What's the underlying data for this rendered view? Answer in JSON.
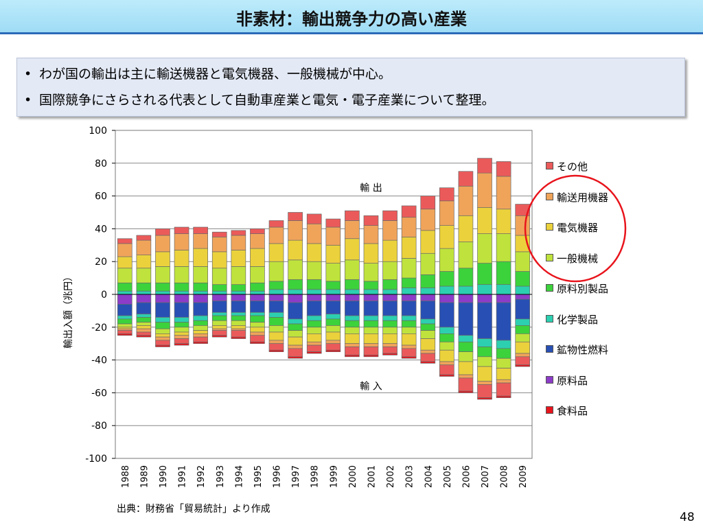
{
  "slide": {
    "title": "非素材：輸出競争力の高い産業",
    "bullets": [
      "わが国の輸出は主に輸送機器と電気機器、一般機械が中心。",
      "国際競争にさらされる代表として自動車産業と電気・電子産業について整理。"
    ],
    "bullet_symbol": "•",
    "source": "出典：財務省「貿易統計」より作成",
    "page_number": "48"
  },
  "chart_data": {
    "type": "bar",
    "stacked": true,
    "ylabel": "輸出入額（兆円）",
    "ylim": [
      -100,
      100
    ],
    "yticks": [
      100,
      80,
      60,
      40,
      20,
      0,
      -20,
      -40,
      -60,
      -80,
      -100
    ],
    "grid": true,
    "legend_position": "right",
    "categories": [
      "1988",
      "1989",
      "1990",
      "1991",
      "1992",
      "1993",
      "1994",
      "1995",
      "1996",
      "1997",
      "1998",
      "1999",
      "2000",
      "2001",
      "2002",
      "2003",
      "2004",
      "2005",
      "2006",
      "2007",
      "2008",
      "2009"
    ],
    "annotations": [
      {
        "text": "輸 出",
        "x": "2001",
        "y": 63
      },
      {
        "text": "輸 入",
        "x": "2001",
        "y": -58
      }
    ],
    "highlight": {
      "shape": "circle",
      "color": "#e8141c",
      "around": "legend: 輸送用機器, 電気機器, 一般機械"
    },
    "export_series": [
      {
        "name": "化学製品",
        "color": "#2cd0b0",
        "values": [
          2,
          2,
          2,
          2,
          2,
          2,
          2,
          2,
          3,
          3,
          3,
          3,
          3,
          3,
          3,
          4,
          4,
          5,
          5,
          6,
          6,
          5
        ]
      },
      {
        "name": "原料別製品",
        "color": "#3cd23c",
        "values": [
          5,
          5,
          5,
          5,
          5,
          4,
          4,
          5,
          5,
          6,
          6,
          5,
          6,
          5,
          6,
          6,
          8,
          9,
          11,
          13,
          14,
          9
        ]
      },
      {
        "name": "一般機械",
        "color": "#bfe33c",
        "values": [
          9,
          9,
          10,
          10,
          10,
          10,
          11,
          10,
          12,
          12,
          11,
          11,
          12,
          11,
          11,
          12,
          13,
          14,
          16,
          18,
          17,
          12
        ]
      },
      {
        "name": "電気機器",
        "color": "#ebd23c",
        "values": [
          7,
          8,
          9,
          10,
          11,
          10,
          10,
          11,
          11,
          12,
          11,
          11,
          13,
          12,
          13,
          13,
          14,
          14,
          16,
          16,
          15,
          10
        ]
      },
      {
        "name": "輸送用機器",
        "color": "#f0a45a",
        "values": [
          8,
          9,
          10,
          10,
          9,
          9,
          9,
          9,
          10,
          12,
          12,
          11,
          11,
          11,
          12,
          12,
          13,
          15,
          18,
          21,
          20,
          12
        ]
      },
      {
        "name": "その他",
        "color": "#eb5a5a",
        "values": [
          3,
          3,
          4,
          4,
          4,
          3,
          3,
          3,
          4,
          5,
          6,
          5,
          6,
          6,
          6,
          7,
          8,
          8,
          9,
          9,
          9,
          7
        ]
      }
    ],
    "import_series": [
      {
        "name": "原料品",
        "color": "#8c3cc8",
        "values": [
          6,
          5,
          5,
          5,
          5,
          4,
          4,
          4,
          4,
          5,
          4,
          4,
          4,
          4,
          4,
          4,
          4,
          5,
          5,
          5,
          5,
          3
        ]
      },
      {
        "name": "鉱物性燃料",
        "color": "#2850b4",
        "values": [
          7,
          7,
          9,
          9,
          8,
          7,
          7,
          7,
          7,
          10,
          9,
          8,
          9,
          9,
          9,
          9,
          11,
          15,
          20,
          22,
          23,
          12
        ]
      },
      {
        "name": "化学製品",
        "color": "#2cd0b0",
        "values": [
          2,
          2,
          3,
          3,
          3,
          2,
          2,
          2,
          3,
          3,
          3,
          3,
          3,
          3,
          3,
          3,
          3,
          4,
          4,
          5,
          5,
          4
        ]
      },
      {
        "name": "原料別製品",
        "color": "#3cd23c",
        "values": [
          3,
          3,
          4,
          3,
          3,
          3,
          3,
          4,
          5,
          4,
          4,
          4,
          4,
          4,
          4,
          4,
          4,
          5,
          6,
          6,
          6,
          5
        ]
      },
      {
        "name": "一般機械",
        "color": "#bfe33c",
        "values": [
          2,
          2,
          3,
          3,
          3,
          3,
          3,
          3,
          4,
          4,
          4,
          4,
          4,
          4,
          4,
          4,
          5,
          5,
          6,
          6,
          6,
          5
        ]
      },
      {
        "name": "電気機器",
        "color": "#ebd23c",
        "values": [
          1,
          2,
          2,
          2,
          2,
          2,
          2,
          3,
          5,
          5,
          5,
          5,
          6,
          6,
          6,
          7,
          7,
          7,
          8,
          9,
          7,
          7
        ]
      },
      {
        "name": "輸送用機器",
        "color": "#f0a45a",
        "values": [
          1,
          2,
          2,
          2,
          2,
          1,
          1,
          2,
          2,
          2,
          2,
          2,
          2,
          2,
          2,
          2,
          2,
          2,
          2,
          2,
          2,
          2
        ]
      },
      {
        "name": "その他",
        "color": "#eb5a5a",
        "values": [
          2,
          2,
          3,
          3,
          3,
          3,
          4,
          4,
          4,
          5,
          4,
          4,
          5,
          5,
          4,
          5,
          5,
          6,
          8,
          8,
          8,
          5
        ]
      },
      {
        "name": "食料品",
        "color": "#e8141c",
        "values": [
          1,
          1,
          1,
          1,
          1,
          1,
          1,
          1,
          1,
          1,
          1,
          1,
          1,
          1,
          1,
          1,
          1,
          1,
          1,
          1,
          1,
          1
        ]
      }
    ],
    "legend": [
      {
        "name": "その他",
        "color": "#eb5a5a"
      },
      {
        "name": "輸送用機器",
        "color": "#f0a45a"
      },
      {
        "name": "電気機器",
        "color": "#ebd23c"
      },
      {
        "name": "一般機械",
        "color": "#bfe33c"
      },
      {
        "name": "原料別製品",
        "color": "#3cd23c"
      },
      {
        "name": "化学製品",
        "color": "#2cd0b0"
      },
      {
        "name": "鉱物性燃料",
        "color": "#2850b4"
      },
      {
        "name": "原料品",
        "color": "#8c3cc8"
      },
      {
        "name": "食料品",
        "color": "#e8141c"
      }
    ]
  }
}
